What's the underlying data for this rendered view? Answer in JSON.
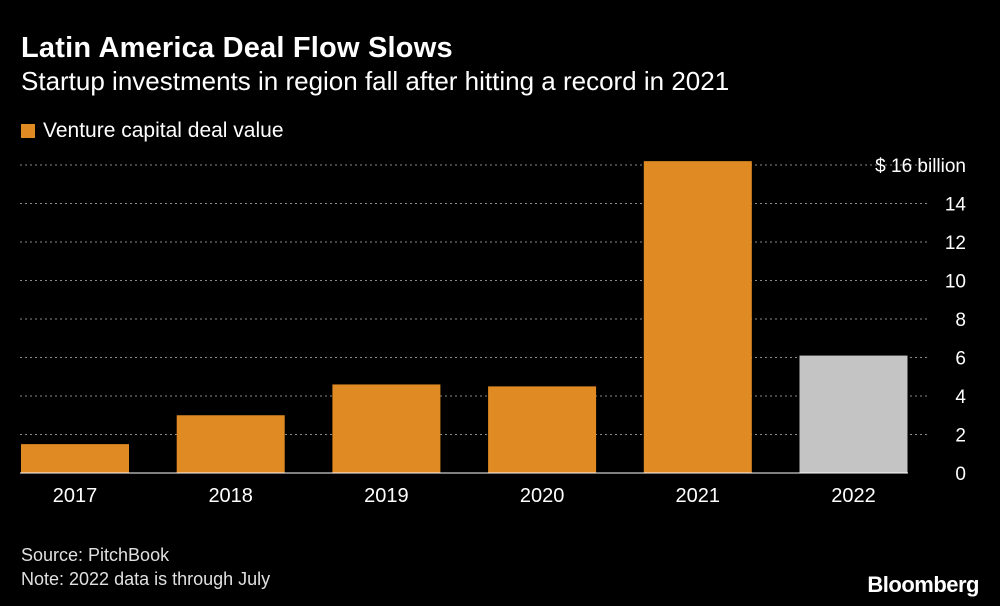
{
  "chart_data": {
    "type": "bar",
    "title": "Latin America Deal Flow Slows",
    "subtitle": "Startup investments in region fall after hitting a record in 2021",
    "legend": [
      {
        "label": "Venture capital deal value",
        "color": "#e08a24"
      }
    ],
    "categories": [
      "2017",
      "2018",
      "2019",
      "2020",
      "2021",
      "2022"
    ],
    "values": [
      1.5,
      3.0,
      4.6,
      4.5,
      16.2,
      6.1
    ],
    "bar_colors": [
      "#e08a24",
      "#e08a24",
      "#e08a24",
      "#e08a24",
      "#e08a24",
      "#c4c4c4"
    ],
    "ylim": [
      0,
      16
    ],
    "yticks": [
      0,
      2,
      4,
      6,
      8,
      10,
      12,
      14,
      16
    ],
    "ytick_labels": [
      "0",
      "2",
      "4",
      "6",
      "8",
      "10",
      "12",
      "14",
      "$ 16 billion"
    ],
    "grid": true,
    "xlabel": "",
    "ylabel": ""
  },
  "footer": {
    "source": "Source: PitchBook",
    "note": "Note: 2022 data is through July",
    "brand": "Bloomberg"
  }
}
